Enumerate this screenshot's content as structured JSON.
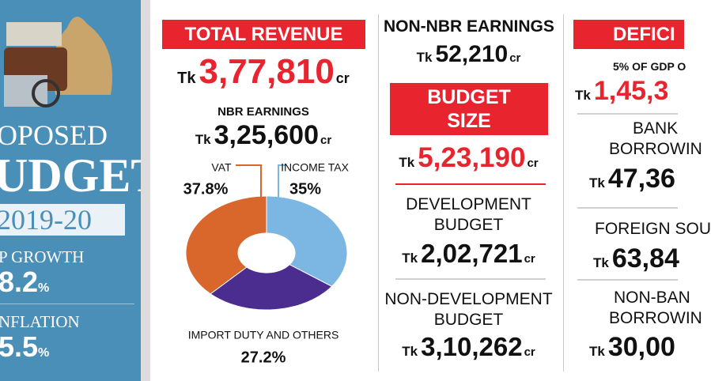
{
  "sidebar": {
    "title_lines": [
      "OPOSED",
      "UDGET",
      "2019-20"
    ],
    "stats": [
      {
        "label": "P GROWTH",
        "value": "8.2",
        "unit": "%"
      },
      {
        "label": "NFLATION",
        "value": "5.5",
        "unit": "%"
      }
    ]
  },
  "total_revenue": {
    "title": "TOTAL REVENUE",
    "currency": "Tk",
    "amount": "3,77,810",
    "unit": "cr"
  },
  "nbr_earnings": {
    "title": "NBR EARNINGS",
    "currency": "Tk",
    "amount": "3,25,600",
    "unit": "cr"
  },
  "chart_data": {
    "type": "pie",
    "categories": [
      "VAT",
      "INCOME TAX",
      "IMPORT DUTY AND OTHERS"
    ],
    "values": [
      37.8,
      35,
      27.2
    ],
    "value_labels": [
      "37.8%",
      "35%",
      "27.2%"
    ],
    "colors": [
      "#d9662b",
      "#7cb7e3",
      "#4b2d8f"
    ],
    "donut": true
  },
  "non_nbr_earnings": {
    "title": "NON-NBR EARNINGS",
    "currency": "Tk",
    "amount": "52,210",
    "unit": "cr"
  },
  "budget_size": {
    "title_lines": [
      "BUDGET",
      "SIZE"
    ],
    "currency": "Tk",
    "amount": "5,23,190",
    "unit": "cr"
  },
  "development_budget": {
    "title_lines": [
      "DEVELOPMENT",
      "BUDGET"
    ],
    "currency": "Tk",
    "amount": "2,02,721",
    "unit": "cr"
  },
  "non_development_budget": {
    "title_lines": [
      "NON-DEVELOPMENT",
      "BUDGET"
    ],
    "currency": "Tk",
    "amount": "3,10,262",
    "unit": "cr"
  },
  "deficit": {
    "title": "DEFICI",
    "note": "5% OF GDP O",
    "currency": "Tk",
    "amount": "1,45,3"
  },
  "bank_borrowing": {
    "title_lines": [
      "BANK",
      "BORROWIN"
    ],
    "currency": "Tk",
    "amount": "47,36"
  },
  "foreign_source": {
    "title": "FOREIGN SOU",
    "currency": "Tk",
    "amount": "63,84"
  },
  "non_bank_borrowing": {
    "title_lines": [
      "NON-BAN",
      "BORROWIN"
    ],
    "currency": "Tk",
    "amount": "30,00"
  }
}
